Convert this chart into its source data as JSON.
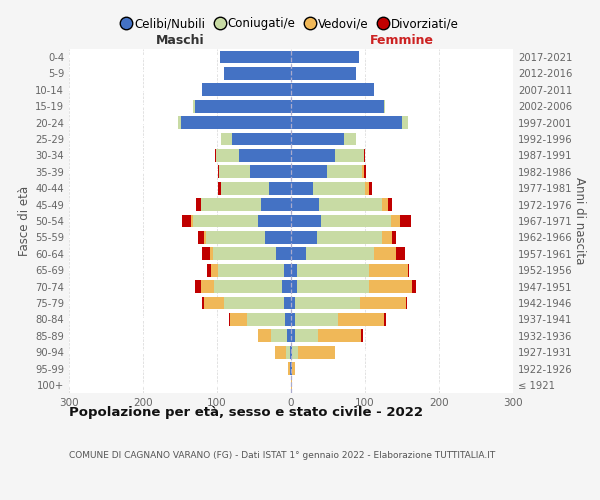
{
  "age_groups": [
    "100+",
    "95-99",
    "90-94",
    "85-89",
    "80-84",
    "75-79",
    "70-74",
    "65-69",
    "60-64",
    "55-59",
    "50-54",
    "45-49",
    "40-44",
    "35-39",
    "30-34",
    "25-29",
    "20-24",
    "15-19",
    "10-14",
    "5-9",
    "0-4"
  ],
  "birth_years": [
    "≤ 1921",
    "1922-1926",
    "1927-1931",
    "1932-1936",
    "1937-1941",
    "1942-1946",
    "1947-1951",
    "1952-1956",
    "1957-1961",
    "1962-1966",
    "1967-1971",
    "1972-1976",
    "1977-1981",
    "1982-1986",
    "1987-1991",
    "1992-1996",
    "1997-2001",
    "2002-2006",
    "2007-2011",
    "2012-2016",
    "2017-2021"
  ],
  "males": {
    "celibi": [
      0,
      1,
      2,
      5,
      8,
      10,
      12,
      10,
      20,
      35,
      45,
      40,
      30,
      55,
      70,
      80,
      148,
      130,
      120,
      90,
      96
    ],
    "coniugati": [
      0,
      1,
      5,
      22,
      52,
      80,
      92,
      88,
      85,
      80,
      88,
      82,
      65,
      42,
      32,
      14,
      5,
      2,
      0,
      0,
      0
    ],
    "vedovi": [
      0,
      2,
      15,
      18,
      22,
      28,
      18,
      10,
      5,
      3,
      2,
      0,
      0,
      0,
      0,
      0,
      0,
      0,
      0,
      0,
      0
    ],
    "divorziati": [
      0,
      0,
      0,
      0,
      2,
      2,
      8,
      5,
      10,
      8,
      12,
      6,
      3,
      2,
      1,
      0,
      0,
      0,
      0,
      0,
      0
    ]
  },
  "females": {
    "nubili": [
      0,
      1,
      2,
      5,
      5,
      5,
      8,
      8,
      20,
      35,
      40,
      38,
      30,
      48,
      60,
      72,
      150,
      125,
      112,
      88,
      92
    ],
    "coniugate": [
      0,
      1,
      8,
      32,
      58,
      88,
      98,
      98,
      92,
      88,
      95,
      85,
      70,
      48,
      38,
      16,
      8,
      2,
      0,
      0,
      0
    ],
    "vedove": [
      1,
      4,
      50,
      58,
      62,
      62,
      58,
      52,
      30,
      14,
      12,
      8,
      5,
      2,
      1,
      0,
      0,
      0,
      0,
      0,
      0
    ],
    "divorziate": [
      0,
      0,
      0,
      2,
      4,
      2,
      5,
      2,
      12,
      5,
      15,
      6,
      5,
      3,
      1,
      0,
      0,
      0,
      0,
      0,
      0
    ]
  },
  "color_celibi": "#4472c4",
  "color_coniugati": "#c8dba4",
  "color_vedovi": "#f0b858",
  "color_divorziati": "#c00000",
  "title": "Popolazione per età, sesso e stato civile - 2022",
  "subtitle": "COMUNE DI CAGNANO VARANO (FG) - Dati ISTAT 1° gennaio 2022 - Elaborazione TUTTITALIA.IT",
  "label_maschi": "Maschi",
  "label_femmine": "Femmine",
  "ylabel_left": "Fasce di età",
  "ylabel_right": "Anni di nascita",
  "legend_labels": [
    "Celibi/Nubili",
    "Coniugati/e",
    "Vedovi/e",
    "Divorziati/e"
  ],
  "xlim": 300,
  "xticks": [
    -300,
    -200,
    -100,
    0,
    100,
    200,
    300
  ],
  "background_color": "#f5f5f5",
  "bar_bg_color": "#ffffff",
  "grid_color": "#cccccc"
}
